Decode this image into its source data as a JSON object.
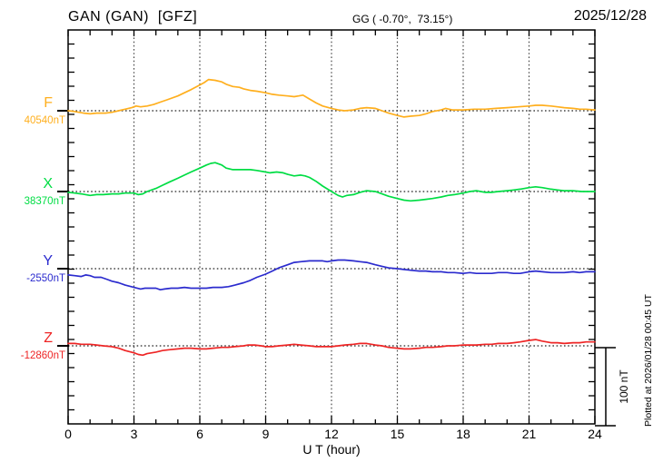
{
  "header": {
    "station_title": "GAN (GAN)  [GFZ]",
    "coordinates": "GG ( -0.70°,  73.15°)",
    "date": "2025/12/28"
  },
  "footer": {
    "xlabel": "U T (hour)",
    "plotted_at": "Plotted at 2026/01/28 00:45 UT"
  },
  "scale_bar": {
    "label": "100 nT",
    "span_nT": 100
  },
  "chart_data": {
    "type": "line",
    "title": "GAN (GAN) [GFZ] magnetogram 2025/12/28",
    "xlabel": "U T (hour)",
    "x_range": [
      0,
      24
    ],
    "x_ticks": [
      0,
      3,
      6,
      9,
      12,
      15,
      18,
      21,
      24
    ],
    "grid": "dotted vertical at 3h steps, dotted horizontal at each trace baseline",
    "legend_position": "left trace labels",
    "y_unit": "nT",
    "values_are": "deviation in nT from each trace baseline",
    "series": [
      {
        "name": "F",
        "baseline_label": "40540nT",
        "baseline_value": 40540,
        "color": "#FFAF1E",
        "points": [
          [
            0,
            0
          ],
          [
            0.3,
            -1
          ],
          [
            0.7,
            -3
          ],
          [
            1,
            -4
          ],
          [
            1.3,
            -3
          ],
          [
            1.7,
            -3
          ],
          [
            2,
            -2
          ],
          [
            2.3,
            0
          ],
          [
            2.6,
            2
          ],
          [
            2.9,
            4
          ],
          [
            3.1,
            6
          ],
          [
            3.3,
            5
          ],
          [
            3.6,
            6
          ],
          [
            3.9,
            8
          ],
          [
            4.2,
            11
          ],
          [
            4.5,
            14
          ],
          [
            5,
            19
          ],
          [
            5.3,
            23
          ],
          [
            5.6,
            27
          ],
          [
            6,
            33
          ],
          [
            6.2,
            36
          ],
          [
            6.4,
            40
          ],
          [
            6.7,
            39
          ],
          [
            7,
            37
          ],
          [
            7.2,
            34
          ],
          [
            7.5,
            31
          ],
          [
            7.8,
            30
          ],
          [
            8,
            28
          ],
          [
            8.3,
            26
          ],
          [
            8.6,
            25
          ],
          [
            9,
            23
          ],
          [
            9.3,
            21
          ],
          [
            9.6,
            20
          ],
          [
            10,
            19
          ],
          [
            10.3,
            18
          ],
          [
            10.5,
            19
          ],
          [
            10.7,
            20
          ],
          [
            11,
            15
          ],
          [
            11.3,
            10
          ],
          [
            11.6,
            6
          ],
          [
            12,
            3
          ],
          [
            12.3,
            1
          ],
          [
            12.6,
            0
          ],
          [
            13,
            1
          ],
          [
            13.3,
            3
          ],
          [
            13.6,
            4
          ],
          [
            14,
            3
          ],
          [
            14.3,
            0
          ],
          [
            14.6,
            -3
          ],
          [
            15,
            -6
          ],
          [
            15.3,
            -8
          ],
          [
            15.6,
            -7
          ],
          [
            16,
            -6
          ],
          [
            16.3,
            -4
          ],
          [
            16.6,
            -1
          ],
          [
            17,
            1
          ],
          [
            17.2,
            3
          ],
          [
            17.5,
            1
          ],
          [
            18,
            1
          ],
          [
            18.5,
            2
          ],
          [
            19,
            2
          ],
          [
            19.5,
            3
          ],
          [
            20,
            4
          ],
          [
            20.5,
            5
          ],
          [
            21,
            6
          ],
          [
            21.3,
            7
          ],
          [
            21.6,
            7
          ],
          [
            22,
            6
          ],
          [
            22.3,
            5
          ],
          [
            22.6,
            4
          ],
          [
            23,
            3
          ],
          [
            23.3,
            2
          ],
          [
            23.6,
            2
          ],
          [
            24,
            1
          ]
        ]
      },
      {
        "name": "X",
        "baseline_label": "38370nT",
        "baseline_value": 38370,
        "color": "#00DD44",
        "points": [
          [
            0,
            -1
          ],
          [
            0.3,
            -2
          ],
          [
            0.6,
            -3
          ],
          [
            1,
            -5
          ],
          [
            1.3,
            -4
          ],
          [
            1.6,
            -4
          ],
          [
            2,
            -3
          ],
          [
            2.3,
            -3
          ],
          [
            2.6,
            -2
          ],
          [
            3,
            -2
          ],
          [
            3.2,
            -4
          ],
          [
            3.4,
            -3
          ],
          [
            3.6,
            0
          ],
          [
            4,
            4
          ],
          [
            4.3,
            8
          ],
          [
            4.6,
            12
          ],
          [
            5,
            17
          ],
          [
            5.3,
            21
          ],
          [
            5.6,
            25
          ],
          [
            6,
            30
          ],
          [
            6.3,
            34
          ],
          [
            6.5,
            36
          ],
          [
            6.7,
            37
          ],
          [
            7,
            34
          ],
          [
            7.2,
            30
          ],
          [
            7.5,
            28
          ],
          [
            8,
            28
          ],
          [
            8.3,
            28
          ],
          [
            8.6,
            27
          ],
          [
            9,
            25
          ],
          [
            9.2,
            24
          ],
          [
            9.5,
            25
          ],
          [
            9.8,
            24
          ],
          [
            10,
            22
          ],
          [
            10.3,
            20
          ],
          [
            10.6,
            21
          ],
          [
            10.8,
            20
          ],
          [
            11,
            18
          ],
          [
            11.3,
            13
          ],
          [
            11.6,
            7
          ],
          [
            12,
            0
          ],
          [
            12.3,
            -5
          ],
          [
            12.5,
            -7
          ],
          [
            12.7,
            -5
          ],
          [
            13,
            -4
          ],
          [
            13.3,
            -1
          ],
          [
            13.6,
            1
          ],
          [
            14,
            0
          ],
          [
            14.3,
            -3
          ],
          [
            14.6,
            -6
          ],
          [
            15,
            -9
          ],
          [
            15.3,
            -11
          ],
          [
            15.6,
            -12
          ],
          [
            16,
            -11
          ],
          [
            16.3,
            -10
          ],
          [
            16.6,
            -9
          ],
          [
            17,
            -7
          ],
          [
            17.3,
            -5
          ],
          [
            17.6,
            -4
          ],
          [
            18,
            -2
          ],
          [
            18.3,
            0
          ],
          [
            18.6,
            1
          ],
          [
            18.8,
            0
          ],
          [
            19,
            -1
          ],
          [
            19.3,
            -1
          ],
          [
            19.6,
            0
          ],
          [
            20,
            1
          ],
          [
            20.3,
            2
          ],
          [
            20.6,
            3
          ],
          [
            21,
            5
          ],
          [
            21.3,
            6
          ],
          [
            21.6,
            5
          ],
          [
            22,
            3
          ],
          [
            22.3,
            2
          ],
          [
            22.6,
            1
          ],
          [
            23,
            1
          ],
          [
            23.4,
            0
          ],
          [
            24,
            0
          ]
        ]
      },
      {
        "name": "Y",
        "baseline_label": "-2550nT",
        "baseline_value": -2550,
        "color": "#2B2BCE",
        "points": [
          [
            0,
            -8
          ],
          [
            0.3,
            -9
          ],
          [
            0.6,
            -10
          ],
          [
            0.8,
            -8
          ],
          [
            1,
            -9
          ],
          [
            1.2,
            -11
          ],
          [
            1.5,
            -11
          ],
          [
            1.8,
            -14
          ],
          [
            2,
            -16
          ],
          [
            2.3,
            -18
          ],
          [
            2.6,
            -21
          ],
          [
            3,
            -24
          ],
          [
            3.3,
            -26
          ],
          [
            3.5,
            -25
          ],
          [
            3.8,
            -25
          ],
          [
            4,
            -25
          ],
          [
            4.2,
            -27
          ],
          [
            4.4,
            -26
          ],
          [
            4.7,
            -25
          ],
          [
            5,
            -25
          ],
          [
            5.3,
            -24
          ],
          [
            5.6,
            -25
          ],
          [
            6,
            -25
          ],
          [
            6.3,
            -25
          ],
          [
            6.6,
            -24
          ],
          [
            7,
            -24
          ],
          [
            7.3,
            -23
          ],
          [
            7.6,
            -21
          ],
          [
            8,
            -18
          ],
          [
            8.3,
            -15
          ],
          [
            8.6,
            -11
          ],
          [
            9,
            -7
          ],
          [
            9.3,
            -3
          ],
          [
            9.6,
            1
          ],
          [
            10,
            5
          ],
          [
            10.3,
            8
          ],
          [
            10.6,
            9
          ],
          [
            11,
            10
          ],
          [
            11.3,
            10
          ],
          [
            11.6,
            10
          ],
          [
            11.8,
            9
          ],
          [
            12,
            10
          ],
          [
            12.3,
            11
          ],
          [
            12.6,
            11
          ],
          [
            13,
            10
          ],
          [
            13.3,
            9
          ],
          [
            13.6,
            8
          ],
          [
            14,
            5
          ],
          [
            14.3,
            3
          ],
          [
            14.6,
            1
          ],
          [
            15,
            0
          ],
          [
            15.3,
            -1
          ],
          [
            15.6,
            -2
          ],
          [
            16,
            -3
          ],
          [
            16.3,
            -3
          ],
          [
            16.6,
            -4
          ],
          [
            17,
            -4
          ],
          [
            17.3,
            -5
          ],
          [
            17.6,
            -5
          ],
          [
            18,
            -6
          ],
          [
            18.3,
            -5
          ],
          [
            18.6,
            -6
          ],
          [
            19,
            -6
          ],
          [
            19.3,
            -6
          ],
          [
            19.6,
            -5
          ],
          [
            20,
            -5
          ],
          [
            20.3,
            -6
          ],
          [
            20.6,
            -6
          ],
          [
            21,
            -4
          ],
          [
            21.3,
            -3
          ],
          [
            21.6,
            -4
          ],
          [
            22,
            -5
          ],
          [
            22.3,
            -5
          ],
          [
            22.6,
            -5
          ],
          [
            23,
            -4
          ],
          [
            23.3,
            -5
          ],
          [
            23.6,
            -4
          ],
          [
            24,
            -4
          ]
        ]
      },
      {
        "name": "Z",
        "baseline_label": "-12860nT",
        "baseline_value": -12860,
        "color": "#EE2525",
        "points": [
          [
            0,
            3
          ],
          [
            0.3,
            3
          ],
          [
            0.6,
            2
          ],
          [
            1,
            2
          ],
          [
            1.3,
            1
          ],
          [
            1.6,
            0
          ],
          [
            2,
            -1
          ],
          [
            2.3,
            -3
          ],
          [
            2.6,
            -6
          ],
          [
            3,
            -9
          ],
          [
            3.2,
            -11
          ],
          [
            3.4,
            -12
          ],
          [
            3.6,
            -10
          ],
          [
            4,
            -8
          ],
          [
            4.3,
            -6
          ],
          [
            4.6,
            -5
          ],
          [
            5,
            -4
          ],
          [
            5.3,
            -3
          ],
          [
            5.6,
            -3
          ],
          [
            6,
            -4
          ],
          [
            6.3,
            -4
          ],
          [
            6.6,
            -3
          ],
          [
            7,
            -2
          ],
          [
            7.3,
            -2
          ],
          [
            7.6,
            -1
          ],
          [
            8,
            0
          ],
          [
            8.2,
            1
          ],
          [
            8.5,
            1
          ],
          [
            8.8,
            0
          ],
          [
            9,
            -1
          ],
          [
            9.3,
            -1
          ],
          [
            9.6,
            0
          ],
          [
            10,
            1
          ],
          [
            10.3,
            2
          ],
          [
            10.6,
            1
          ],
          [
            11,
            0
          ],
          [
            11.3,
            -1
          ],
          [
            11.6,
            -1
          ],
          [
            12,
            -1
          ],
          [
            12.3,
            0
          ],
          [
            12.6,
            1
          ],
          [
            13,
            2
          ],
          [
            13.3,
            3
          ],
          [
            13.6,
            3
          ],
          [
            14,
            1
          ],
          [
            14.3,
            0
          ],
          [
            14.6,
            -2
          ],
          [
            15,
            -3
          ],
          [
            15.3,
            -4
          ],
          [
            15.6,
            -4
          ],
          [
            16,
            -3
          ],
          [
            16.3,
            -2
          ],
          [
            16.6,
            -2
          ],
          [
            17,
            -1
          ],
          [
            17.3,
            0
          ],
          [
            17.6,
            0
          ],
          [
            18,
            1
          ],
          [
            18.3,
            1
          ],
          [
            18.6,
            1
          ],
          [
            19,
            2
          ],
          [
            19.3,
            2
          ],
          [
            19.6,
            3
          ],
          [
            20,
            3
          ],
          [
            20.3,
            4
          ],
          [
            20.6,
            5
          ],
          [
            21,
            7
          ],
          [
            21.3,
            8
          ],
          [
            21.6,
            6
          ],
          [
            22,
            4
          ],
          [
            22.3,
            4
          ],
          [
            22.6,
            3
          ],
          [
            23,
            4
          ],
          [
            23.3,
            4
          ],
          [
            23.6,
            5
          ],
          [
            24,
            5
          ]
        ]
      }
    ]
  }
}
